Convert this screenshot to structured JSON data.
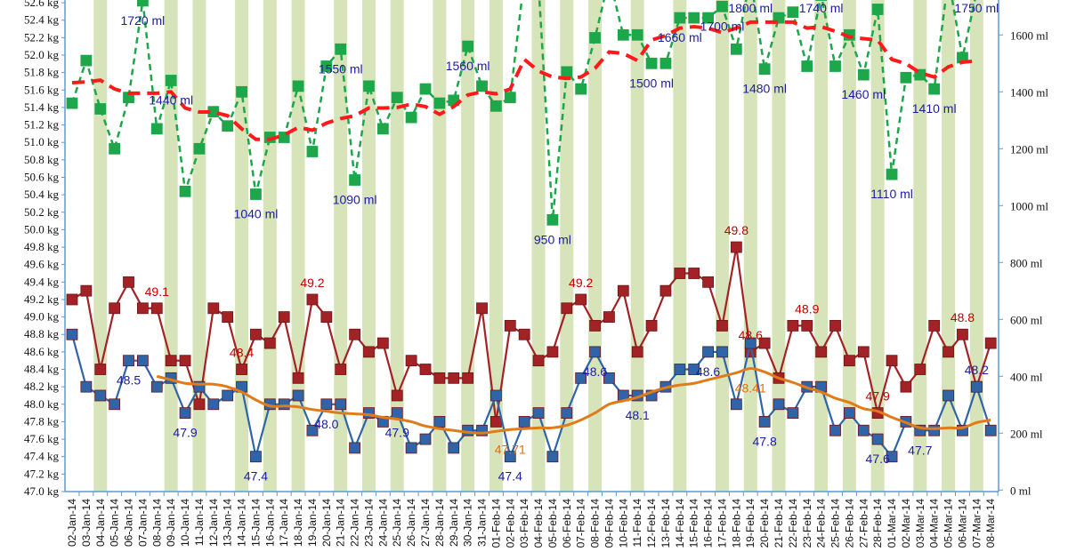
{
  "chart_data": {
    "type": "line",
    "title": "",
    "xlabel": "",
    "ylabel": "",
    "y_left": {
      "unit": "kg",
      "range": [
        47.0,
        52.6
      ],
      "step": 0.2,
      "tick_labels": [
        "47.0 kg",
        "47.2 kg",
        "47.4 kg",
        "47.6 kg",
        "47.8 kg",
        "48.0 kg",
        "48.2 kg",
        "48.4 kg",
        "48.6 kg",
        "48.8 kg",
        "49.0 kg",
        "49.2 kg",
        "49.4 kg",
        "49.6 kg",
        "49.8 kg",
        "50.0 kg",
        "50.2 kg",
        "50.4 kg",
        "50.6 kg",
        "50.8 kg",
        "51.0 kg",
        "51.2 kg",
        "51.4 kg",
        "51.6 kg",
        "51.8 kg",
        "52.0 kg",
        "52.2 kg",
        "52.4 kg",
        "52.6 kg"
      ]
    },
    "y_right": {
      "unit": "ml",
      "range": [
        0,
        1720
      ],
      "step": 200,
      "tick_labels": [
        "0 ml",
        "200 ml",
        "400 ml",
        "600 ml",
        "800 ml",
        "1000 ml",
        "1200 ml",
        "1400 ml",
        "1600 ml"
      ]
    },
    "grid": false,
    "legend": "none",
    "x": [
      "02-Jan-14",
      "03-Jan-14",
      "04-Jan-14",
      "05-Jan-14",
      "06-Jan-14",
      "07-Jan-14",
      "08-Jan-14",
      "09-Jan-14",
      "10-Jan-14",
      "11-Jan-14",
      "12-Jan-14",
      "13-Jan-14",
      "14-Jan-14",
      "15-Jan-14",
      "16-Jan-14",
      "17-Jan-14",
      "18-Jan-14",
      "19-Jan-14",
      "20-Jan-14",
      "21-Jan-14",
      "22-Jan-14",
      "23-Jan-14",
      "24-Jan-14",
      "25-Jan-14",
      "26-Jan-14",
      "27-Jan-14",
      "28-Jan-14",
      "29-Jan-14",
      "30-Jan-14",
      "31-Jan-14",
      "01-Feb-14",
      "02-Feb-14",
      "03-Feb-14",
      "04-Feb-14",
      "05-Feb-14",
      "06-Feb-14",
      "07-Feb-14",
      "08-Feb-14",
      "09-Feb-14",
      "10-Feb-14",
      "11-Feb-14",
      "12-Feb-14",
      "13-Feb-14",
      "14-Feb-14",
      "15-Feb-14",
      "16-Feb-14",
      "17-Feb-14",
      "18-Feb-14",
      "19-Feb-14",
      "20-Feb-14",
      "21-Feb-14",
      "22-Feb-14",
      "23-Feb-14",
      "24-Feb-14",
      "25-Feb-14",
      "26-Feb-14",
      "27-Feb-14",
      "28-Feb-14",
      "01-Mar-14",
      "02-Mar-14",
      "03-Mar-14",
      "04-Mar-14",
      "05-Mar-14",
      "06-Mar-14",
      "07-Mar-14",
      "08-Mar-14"
    ],
    "highlighted_dates": [
      "04-Jan-14",
      "09-Jan-14",
      "11-Jan-14",
      "14-Jan-14",
      "16-Jan-14",
      "18-Jan-14",
      "21-Jan-14",
      "23-Jan-14",
      "25-Jan-14",
      "28-Jan-14",
      "30-Jan-14",
      "01-Feb-14",
      "04-Feb-14",
      "06-Feb-14",
      "08-Feb-14",
      "11-Feb-14",
      "14-Feb-14",
      "17-Feb-14",
      "19-Feb-14",
      "21-Feb-14",
      "24-Feb-14",
      "26-Feb-14",
      "28-Feb-14",
      "03-Mar-14",
      "05-Mar-14",
      "07-Mar-14"
    ],
    "highlight_color": "#d7e4b9",
    "series": [
      {
        "axis": "left",
        "style": "solid-square",
        "color": "#a32226",
        "label_color": "#c00000",
        "values": [
          49.2,
          49.3,
          48.4,
          49.1,
          49.4,
          49.1,
          49.1,
          48.5,
          48.5,
          48.0,
          49.1,
          49.0,
          48.4,
          48.8,
          48.7,
          49.0,
          48.3,
          49.2,
          49.0,
          48.4,
          48.8,
          48.6,
          48.7,
          48.1,
          48.5,
          48.4,
          48.3,
          48.3,
          48.3,
          49.1,
          47.8,
          48.9,
          48.8,
          48.5,
          48.6,
          49.1,
          49.2,
          48.9,
          49.0,
          49.3,
          48.6,
          48.9,
          49.3,
          49.5,
          49.5,
          49.4,
          48.9,
          49.8,
          48.6,
          48.7,
          48.3,
          48.9,
          48.9,
          48.6,
          48.9,
          48.5,
          48.6,
          47.9,
          48.5,
          48.2,
          48.4,
          48.9,
          48.6,
          48.8,
          48.2,
          48.7
        ],
        "labels": [
          {
            "i": 6,
            "text": "49.1",
            "pos": "above"
          },
          {
            "i": 12,
            "text": "48.4",
            "pos": "above"
          },
          {
            "i": 17,
            "text": "49.2",
            "pos": "above"
          },
          {
            "i": 36,
            "text": "49.2",
            "pos": "above"
          },
          {
            "i": 47,
            "text": "49.8",
            "pos": "above"
          },
          {
            "i": 48,
            "text": "48.6",
            "pos": "above"
          },
          {
            "i": 52,
            "text": "48.9",
            "pos": "above"
          },
          {
            "i": 57,
            "text": "47.9",
            "pos": "above"
          },
          {
            "i": 63,
            "text": "48.8",
            "pos": "above"
          }
        ]
      },
      {
        "axis": "left",
        "style": "solid-square",
        "color": "#2f65a8",
        "label_color": "#1c1ca0",
        "values": [
          48.8,
          48.2,
          48.1,
          48.0,
          48.5,
          48.5,
          48.2,
          48.3,
          47.9,
          48.2,
          48.0,
          48.1,
          48.2,
          47.4,
          48.0,
          48.0,
          48.1,
          47.7,
          48.0,
          48.0,
          47.5,
          47.9,
          47.8,
          47.9,
          47.5,
          47.6,
          47.8,
          47.5,
          47.7,
          47.7,
          48.1,
          47.4,
          47.8,
          47.9,
          47.4,
          47.9,
          48.3,
          48.6,
          48.3,
          48.1,
          48.1,
          48.1,
          48.2,
          48.4,
          48.4,
          48.6,
          48.6,
          48.0,
          48.7,
          47.8,
          48.0,
          47.9,
          48.2,
          48.2,
          47.7,
          47.9,
          47.7,
          47.6,
          47.4,
          47.8,
          47.7,
          47.7,
          48.1,
          47.7,
          48.2,
          47.7
        ],
        "labels": [
          {
            "i": 4,
            "text": "48.5",
            "pos": "below"
          },
          {
            "i": 8,
            "text": "47.9",
            "pos": "below"
          },
          {
            "i": 13,
            "text": "47.4",
            "pos": "below"
          },
          {
            "i": 18,
            "text": "48.0",
            "pos": "below"
          },
          {
            "i": 23,
            "text": "47.9",
            "pos": "below"
          },
          {
            "i": 31,
            "text": "47.4",
            "pos": "below"
          },
          {
            "i": 37,
            "text": "48.6",
            "pos": "below"
          },
          {
            "i": 40,
            "text": "48.1",
            "pos": "below"
          },
          {
            "i": 45,
            "text": "48.6",
            "pos": "below"
          },
          {
            "i": 49,
            "text": "47.8",
            "pos": "below"
          },
          {
            "i": 57,
            "text": "47.6",
            "pos": "below"
          },
          {
            "i": 60,
            "text": "47.7",
            "pos": "below"
          },
          {
            "i": 64,
            "text": "48.2",
            "pos": "above"
          }
        ]
      },
      {
        "axis": "left",
        "style": "smooth",
        "color": "#e07b1a",
        "label_color": "#e36c09",
        "values": [
          null,
          null,
          null,
          null,
          null,
          null,
          48.32,
          48.28,
          48.24,
          48.23,
          48.23,
          48.2,
          48.14,
          48.05,
          47.98,
          47.98,
          47.97,
          47.94,
          47.92,
          47.9,
          47.89,
          47.88,
          47.85,
          47.83,
          47.8,
          47.75,
          47.72,
          47.7,
          47.68,
          47.67,
          47.69,
          47.71,
          47.72,
          47.73,
          47.73,
          47.76,
          47.82,
          47.9,
          48.0,
          48.04,
          48.08,
          48.14,
          48.19,
          48.22,
          48.24,
          48.28,
          48.32,
          48.36,
          48.41,
          48.37,
          48.3,
          48.25,
          48.19,
          48.14,
          48.07,
          48.02,
          47.95,
          47.92,
          47.85,
          47.79,
          47.73,
          47.72,
          47.73,
          47.73,
          47.79,
          47.82
        ],
        "labels": [
          {
            "i": 31,
            "text": "47.71",
            "pos": "below"
          },
          {
            "i": 48,
            "text": "48.41",
            "pos": "below"
          }
        ]
      },
      {
        "axis": "right",
        "style": "dashed-square",
        "color": "#1ea64a",
        "label_color": "#1c1ca0",
        "values": [
          1360,
          1510,
          1340,
          1200,
          1380,
          1720,
          1270,
          1440,
          1050,
          1200,
          1330,
          1280,
          1400,
          1040,
          1240,
          1240,
          1420,
          1190,
          1490,
          1550,
          1090,
          1420,
          1270,
          1380,
          1310,
          1410,
          1360,
          1370,
          1560,
          1420,
          1350,
          1380,
          1800,
          1780,
          950,
          1470,
          1410,
          1590,
          1800,
          1600,
          1600,
          1500,
          1500,
          1660,
          1660,
          1660,
          1700,
          1550,
          1800,
          1480,
          1660,
          1680,
          1490,
          1740,
          1490,
          1600,
          1460,
          1690,
          1110,
          1450,
          1460,
          1410,
          1800,
          1520,
          1750,
          null
        ],
        "labels": [
          {
            "i": 5,
            "text": "1720 ml",
            "pos": "below"
          },
          {
            "i": 7,
            "text": "1440 ml",
            "pos": "below"
          },
          {
            "i": 13,
            "text": "1040 ml",
            "pos": "below"
          },
          {
            "i": 19,
            "text": "1550 ml",
            "pos": "below"
          },
          {
            "i": 20,
            "text": "1090 ml",
            "pos": "below"
          },
          {
            "i": 28,
            "text": "1560 ml",
            "pos": "below"
          },
          {
            "i": 34,
            "text": "950 ml",
            "pos": "below"
          },
          {
            "i": 41,
            "text": "1500 ml",
            "pos": "below"
          },
          {
            "i": 43,
            "text": "1660 ml",
            "pos": "below"
          },
          {
            "i": 46,
            "text": "1700 ml",
            "pos": "below"
          },
          {
            "i": 48,
            "text": "1800 ml",
            "pos": "top"
          },
          {
            "i": 49,
            "text": "1480 ml",
            "pos": "below"
          },
          {
            "i": 53,
            "text": "1740 ml",
            "pos": "top"
          },
          {
            "i": 56,
            "text": "1460 ml",
            "pos": "below"
          },
          {
            "i": 58,
            "text": "1110 ml",
            "pos": "below"
          },
          {
            "i": 61,
            "text": "1410 ml",
            "pos": "below"
          },
          {
            "i": 64,
            "text": "1750 ml",
            "pos": "top"
          }
        ]
      },
      {
        "axis": "right",
        "style": "dashed-thick",
        "color": "#ff1a1a",
        "values": [
          1432,
          1435,
          1441,
          1410,
          1395,
          1395,
          1395,
          1400,
          1343,
          1329,
          1329,
          1316,
          1270,
          1233,
          1233,
          1248,
          1275,
          1265,
          1290,
          1306,
          1316,
          1343,
          1343,
          1345,
          1357,
          1348,
          1321,
          1348,
          1389,
          1400,
          1393,
          1410,
          1514,
          1473,
          1452,
          1447,
          1452,
          1483,
          1540,
          1535,
          1510,
          1582,
          1598,
          1624,
          1629,
          1624,
          1608,
          1624,
          1645,
          1645,
          1645,
          1645,
          1624,
          1629,
          1613,
          1593,
          1587,
          1582,
          1514,
          1499,
          1467,
          1452,
          1488,
          1504,
          1509,
          null
        ],
        "labels": []
      }
    ]
  }
}
